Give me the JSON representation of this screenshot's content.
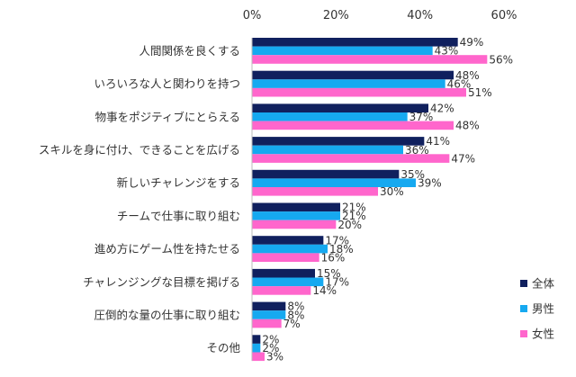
{
  "chart_data": {
    "type": "bar",
    "orientation": "horizontal",
    "categories": [
      "人間関係を良くする",
      "いろいろな人と関わりを持つ",
      "物事をポジティブにとらえる",
      "スキルを身に付け、できることを広げる",
      "新しいチャレンジをする",
      "チームで仕事に取り組む",
      "進め方にゲーム性を持たせる",
      "チャレンジングな目標を掲げる",
      "圧倒的な量の仕事に取り組む",
      "その他"
    ],
    "series": [
      {
        "name": "全体",
        "color": "#10205e",
        "values": [
          49,
          48,
          42,
          41,
          35,
          21,
          17,
          15,
          8,
          2
        ]
      },
      {
        "name": "男性",
        "color": "#16a9f0",
        "values": [
          43,
          46,
          37,
          36,
          39,
          21,
          18,
          17,
          8,
          2
        ]
      },
      {
        "name": "女性",
        "color": "#ff66cc",
        "values": [
          56,
          51,
          48,
          47,
          30,
          20,
          16,
          14,
          7,
          3
        ]
      }
    ],
    "xlim": [
      0,
      60
    ],
    "x_ticks": [
      "0%",
      "20%",
      "40%",
      "60%"
    ],
    "value_suffix": "%",
    "legend_position": "right-bottom",
    "grid": false
  }
}
